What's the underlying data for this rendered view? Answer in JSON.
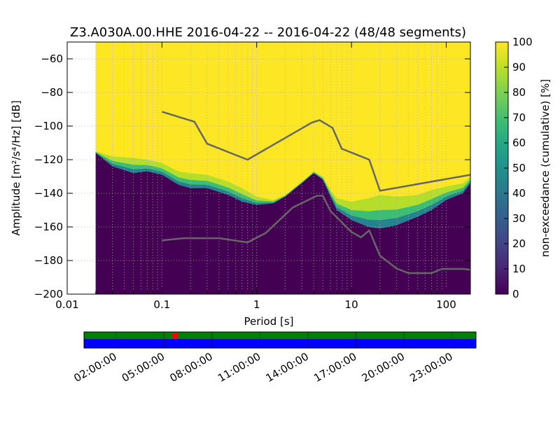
{
  "title": "Z3.A030A.00.HHE   2016-04-22 -- 2016-04-22  (48/48 segments)",
  "chart_data": {
    "type": "heatmap",
    "title": "Z3.A030A.00.HHE   2016-04-22 -- 2016-04-22  (48/48 segments)",
    "xlabel": "Period [s]",
    "ylabel": "Amplitude [m²/s⁴/Hz] [dB]",
    "xscale": "log",
    "xlim": [
      0.01,
      180
    ],
    "ylim": [
      -200,
      -50
    ],
    "x_ticks": [
      {
        "value": 0.01,
        "label": "0.01"
      },
      {
        "value": 0.1,
        "label": "0.1"
      },
      {
        "value": 1,
        "label": "1"
      },
      {
        "value": 10,
        "label": "10"
      },
      {
        "value": 100,
        "label": "100"
      }
    ],
    "y_ticks": [
      {
        "value": -60,
        "label": "−60"
      },
      {
        "value": -80,
        "label": "−80"
      },
      {
        "value": -100,
        "label": "−100"
      },
      {
        "value": -120,
        "label": "−120"
      },
      {
        "value": -140,
        "label": "−140"
      },
      {
        "value": -160,
        "label": "−160"
      },
      {
        "value": -180,
        "label": "−180"
      },
      {
        "value": -200,
        "label": "−200"
      }
    ],
    "grid": true,
    "data_start_period": 0.02,
    "colorbar": {
      "label": "non-exceedance (cumulative) [%]",
      "range": [
        0,
        100
      ],
      "ticks": [
        {
          "value": 0,
          "label": "0"
        },
        {
          "value": 10,
          "label": "10"
        },
        {
          "value": 20,
          "label": "20"
        },
        {
          "value": 30,
          "label": "30"
        },
        {
          "value": 40,
          "label": "40"
        },
        {
          "value": 50,
          "label": "50"
        },
        {
          "value": 60,
          "label": "60"
        },
        {
          "value": 70,
          "label": "70"
        },
        {
          "value": 80,
          "label": "80"
        },
        {
          "value": 90,
          "label": "90"
        },
        {
          "value": 100,
          "label": "100"
        }
      ],
      "colormap": "viridis"
    },
    "band_edges": [
      {
        "period": 0.02,
        "low": -116,
        "high": -115
      },
      {
        "period": 0.03,
        "low": -124,
        "high": -118
      },
      {
        "period": 0.05,
        "low": -128,
        "high": -119
      },
      {
        "period": 0.07,
        "low": -127,
        "high": -120
      },
      {
        "period": 0.1,
        "low": -129,
        "high": -122
      },
      {
        "period": 0.15,
        "low": -135,
        "high": -127
      },
      {
        "period": 0.2,
        "low": -137,
        "high": -128
      },
      {
        "period": 0.3,
        "low": -137,
        "high": -129
      },
      {
        "period": 0.5,
        "low": -141,
        "high": -133
      },
      {
        "period": 0.7,
        "low": -145,
        "high": -137
      },
      {
        "period": 1,
        "low": -147,
        "high": -142
      },
      {
        "period": 1.5,
        "low": -146,
        "high": -144
      },
      {
        "period": 2,
        "low": -142,
        "high": -141
      },
      {
        "period": 3,
        "low": -134,
        "high": -133
      },
      {
        "period": 4,
        "low": -128,
        "high": -127
      },
      {
        "period": 5,
        "low": -132,
        "high": -130
      },
      {
        "period": 6,
        "low": -142,
        "high": -138
      },
      {
        "period": 7,
        "low": -150,
        "high": -143
      },
      {
        "period": 10,
        "low": -156,
        "high": -145
      },
      {
        "period": 15,
        "low": -160,
        "high": -143
      },
      {
        "period": 20,
        "low": -161,
        "high": -141
      },
      {
        "period": 30,
        "low": -159,
        "high": -142
      },
      {
        "period": 50,
        "low": -154,
        "high": -141
      },
      {
        "period": 70,
        "low": -150,
        "high": -138
      },
      {
        "period": 100,
        "low": -144,
        "high": -136
      },
      {
        "period": 150,
        "low": -140,
        "high": -134
      },
      {
        "period": 180,
        "low": -134,
        "high": -130
      }
    ],
    "series": [
      {
        "name": "",
        "x": [
          0.1,
          0.22,
          0.3,
          0.8,
          3.8,
          4.6,
          6.3,
          7.9,
          15.4,
          20,
          180
        ],
        "y": [
          -91.5,
          -97.4,
          -110.5,
          -120,
          -98,
          -96.5,
          -101,
          -113.5,
          -120,
          -138.5,
          -129
        ]
      },
      {
        "name": "",
        "x": [
          0.1,
          0.17,
          0.4,
          0.8,
          1.24,
          2.4,
          4.3,
          5.0,
          6.0,
          10.0,
          12.6,
          15.4,
          20.0,
          30.0,
          40.0,
          70.0,
          90.0,
          150.0,
          180.0
        ],
        "y": [
          -168,
          -166.7,
          -166.7,
          -169.2,
          -163.7,
          -148.5,
          -141.5,
          -141.5,
          -150.5,
          -163,
          -166.2,
          -162.1,
          -177.1,
          -184.8,
          -187.5,
          -187.5,
          -185,
          -185,
          -185.5
        ]
      }
    ],
    "line_color": "#666666"
  },
  "timeline": {
    "tick_labels": [
      "02:00:00",
      "05:00:00",
      "08:00:00",
      "11:00:00",
      "14:00:00",
      "17:00:00",
      "20:00:00",
      "23:00:00"
    ],
    "tick_hours": [
      2,
      5,
      8,
      11,
      14,
      17,
      20,
      23
    ],
    "range_hours": [
      0,
      24.5
    ],
    "top_color": "#008000",
    "bottom_color": "#0000ff",
    "marker_color": "#ff0000",
    "marker_hour": 5.7
  }
}
